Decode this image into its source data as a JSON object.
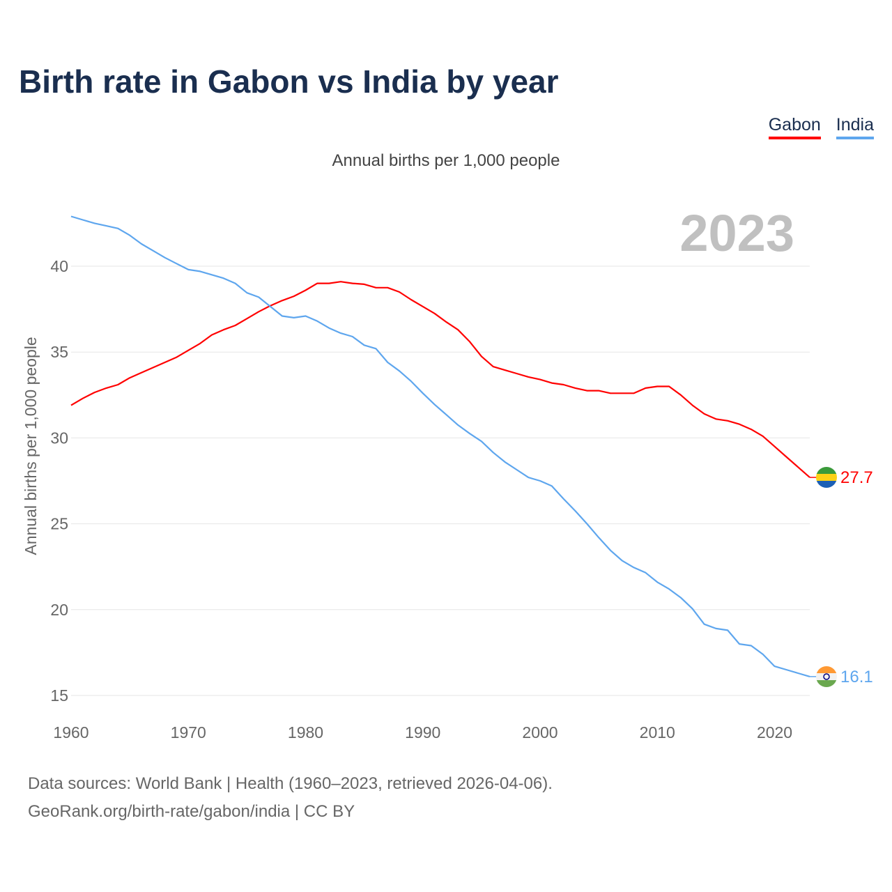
{
  "title": "Birth rate in Gabon vs India by year",
  "footer": {
    "line1": "Data sources: World Bank | Health (1960–2023, retrieved 2026-04-06).",
    "line2": "GeoRank.org/birth-rate/gabon/india | CC BY"
  },
  "chart_data": {
    "type": "line",
    "title": "Birth rate in Gabon vs India by year",
    "subtitle": "Annual births per 1,000 people",
    "ylabel": "Annual births per 1,000 people",
    "xlabel": "",
    "year_label": "2023",
    "xlim": [
      1960,
      2023
    ],
    "ylim": [
      15,
      43
    ],
    "yticks": [
      15,
      20,
      25,
      30,
      35,
      40
    ],
    "xticks": [
      1960,
      1970,
      1980,
      1990,
      2000,
      2010,
      2020
    ],
    "grid": true,
    "legend_position": "top-right",
    "x": [
      1960,
      1961,
      1962,
      1963,
      1964,
      1965,
      1966,
      1967,
      1968,
      1969,
      1970,
      1971,
      1972,
      1973,
      1974,
      1975,
      1976,
      1977,
      1978,
      1979,
      1980,
      1981,
      1982,
      1983,
      1984,
      1985,
      1986,
      1987,
      1988,
      1989,
      1990,
      1991,
      1992,
      1993,
      1994,
      1995,
      1996,
      1997,
      1998,
      1999,
      2000,
      2001,
      2002,
      2003,
      2004,
      2005,
      2006,
      2007,
      2008,
      2009,
      2010,
      2011,
      2012,
      2013,
      2014,
      2015,
      2016,
      2017,
      2018,
      2019,
      2020,
      2021,
      2022,
      2023
    ],
    "series": [
      {
        "name": "Gabon",
        "color": "#ff0000",
        "end_label": "27.7",
        "values": [
          31.9,
          32.3,
          32.65,
          32.9,
          33.1,
          33.5,
          33.8,
          34.1,
          34.4,
          34.7,
          35.1,
          35.5,
          36.0,
          36.3,
          36.55,
          36.95,
          37.35,
          37.7,
          38.0,
          38.25,
          38.6,
          39.0,
          39.0,
          39.1,
          39.0,
          38.95,
          38.75,
          38.75,
          38.5,
          38.05,
          37.65,
          37.25,
          36.75,
          36.3,
          35.6,
          34.75,
          34.15,
          33.95,
          33.75,
          33.55,
          33.4,
          33.2,
          33.1,
          32.9,
          32.75,
          32.75,
          32.6,
          32.6,
          32.6,
          32.9,
          33.0,
          33.0,
          32.5,
          31.9,
          31.4,
          31.1,
          31.0,
          30.8,
          30.5,
          30.1,
          29.5,
          28.9,
          28.3,
          27.7
        ]
      },
      {
        "name": "India",
        "color": "#5ea6ee",
        "end_label": "16.1",
        "values": [
          42.9,
          42.7,
          42.5,
          42.35,
          42.2,
          41.8,
          41.3,
          40.9,
          40.5,
          40.15,
          39.8,
          39.7,
          39.5,
          39.3,
          39.0,
          38.45,
          38.2,
          37.65,
          37.1,
          37.0,
          37.1,
          36.8,
          36.4,
          36.1,
          35.9,
          35.4,
          35.2,
          34.4,
          33.9,
          33.3,
          32.6,
          31.95,
          31.35,
          30.75,
          30.25,
          29.8,
          29.15,
          28.6,
          28.15,
          27.7,
          27.5,
          27.2,
          26.45,
          25.75,
          25.0,
          24.2,
          23.45,
          22.85,
          22.45,
          22.15,
          21.6,
          21.2,
          20.7,
          20.05,
          19.15,
          18.9,
          18.8,
          18.0,
          17.9,
          17.4,
          16.7,
          16.5,
          16.3,
          16.1
        ]
      }
    ]
  }
}
